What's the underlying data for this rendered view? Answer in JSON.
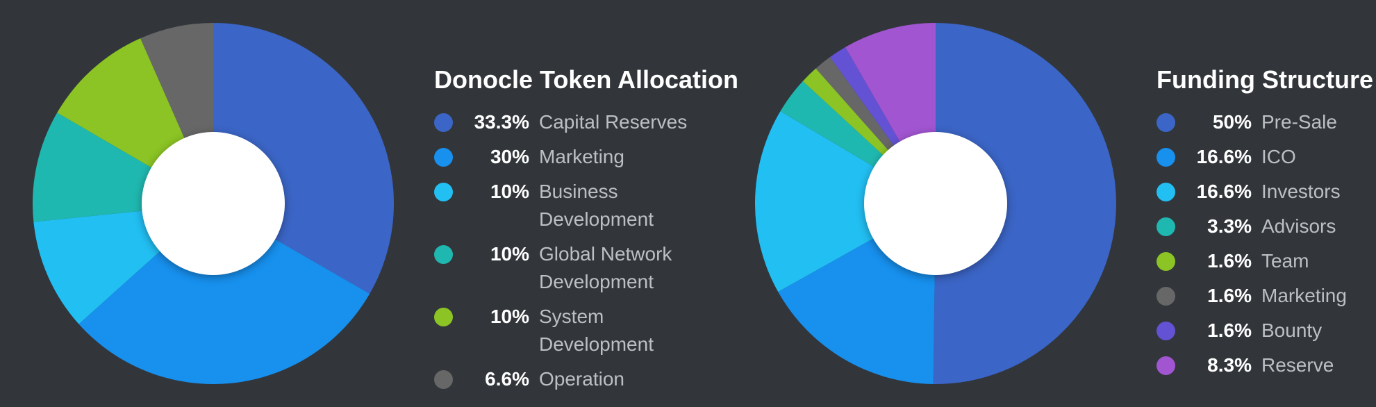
{
  "chart_data": [
    {
      "type": "pie",
      "title": "Donocle Token Allocation",
      "slices": [
        {
          "label": "Capital Reserves",
          "value": 33.3,
          "display": "33.3%",
          "color": "#3b65c6"
        },
        {
          "label": "Marketing",
          "value": 30,
          "display": "30%",
          "color": "#1790ee"
        },
        {
          "label": "Business Development",
          "value": 10,
          "display": "10%",
          "color": "#22bff3"
        },
        {
          "label": "Global Network Development",
          "value": 10,
          "display": "10%",
          "color": "#1fb8b0"
        },
        {
          "label": "System Development",
          "value": 10,
          "display": "10%",
          "color": "#8bc424"
        },
        {
          "label": "Operation",
          "value": 6.6,
          "display": "6.6%",
          "color": "#676767"
        }
      ]
    },
    {
      "type": "pie",
      "title": "Funding Structure",
      "slices": [
        {
          "label": "Pre-Sale",
          "value": 50,
          "display": "50%",
          "color": "#3b65c6"
        },
        {
          "label": "ICO",
          "value": 16.6,
          "display": "16.6%",
          "color": "#1790ee"
        },
        {
          "label": "Investors",
          "value": 16.6,
          "display": "16.6%",
          "color": "#22bff3"
        },
        {
          "label": "Advisors",
          "value": 3.3,
          "display": "3.3%",
          "color": "#1fb8b0"
        },
        {
          "label": "Team",
          "value": 1.6,
          "display": "1.6%",
          "color": "#8bc424"
        },
        {
          "label": "Marketing",
          "value": 1.6,
          "display": "1.6%",
          "color": "#676767"
        },
        {
          "label": "Bounty",
          "value": 1.6,
          "display": "1.6%",
          "color": "#6352d3"
        },
        {
          "label": "Reserve",
          "value": 8.3,
          "display": "8.3%",
          "color": "#a155d1"
        }
      ]
    }
  ],
  "colors": {
    "background": "#32363b",
    "hole": "#ffffff",
    "title_text": "#ffffff",
    "label_text": "#bcc0c4"
  }
}
